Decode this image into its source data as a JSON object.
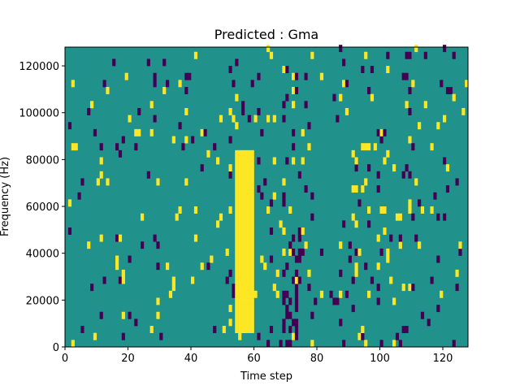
{
  "chart_data": {
    "type": "heatmap",
    "title": "Predicted : Gma",
    "xlabel": "Time step",
    "ylabel": "Frequency (Hz)",
    "xlim": [
      0,
      128
    ],
    "ylim": [
      0,
      128000
    ],
    "x_ticks": [
      "0",
      "20",
      "40",
      "60",
      "80",
      "100",
      "120"
    ],
    "y_ticks": [
      "0",
      "20000",
      "40000",
      "60000",
      "80000",
      "100000",
      "120000"
    ],
    "colormap": "viridis",
    "background_color": "#21918c",
    "high_color": "#fde725",
    "low_color": "#440154",
    "grid": false,
    "legend": "none",
    "time_steps": 128,
    "frequency_bins": 128,
    "dominant_high_band": {
      "time_steps": [
        54,
        59
      ],
      "freq_hz": [
        5000,
        82000
      ]
    }
  },
  "icons": [
    "matplotlib-figure"
  ]
}
